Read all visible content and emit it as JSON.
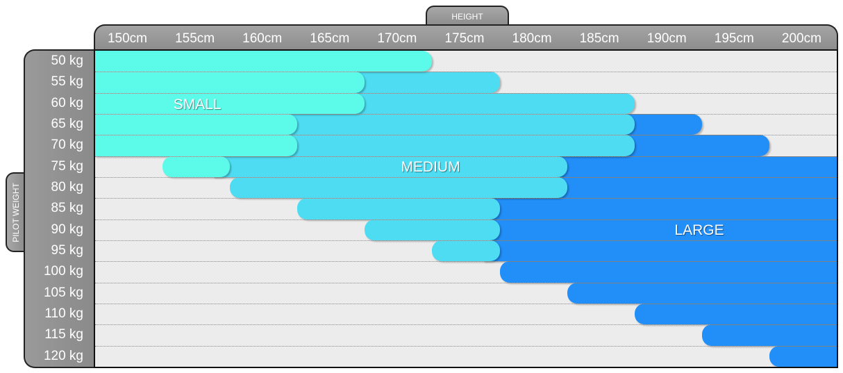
{
  "chart_data": {
    "type": "table",
    "x_axis_label": "HEIGHT",
    "y_axis_label": "PILOT WEIGHT",
    "x_ticks": [
      "150cm",
      "155cm",
      "160cm",
      "165cm",
      "170cm",
      "175cm",
      "180cm",
      "185cm",
      "190cm",
      "195cm",
      "200cm"
    ],
    "y_ticks": [
      "50 kg",
      "55 kg",
      "60 kg",
      "65 kg",
      "70 kg",
      "75 kg",
      "80 kg",
      "85 kg",
      "90 kg",
      "95 kg",
      "100 kg",
      "105 kg",
      "110 kg",
      "115 kg",
      "120 kg"
    ],
    "series": [
      {
        "name": "SMALL",
        "color": "#5cfbe9",
        "ranges": {
          "50 kg": [
            "150cm",
            "170cm"
          ],
          "55 kg": [
            "150cm",
            "165cm"
          ],
          "60 kg": [
            "150cm",
            "165cm"
          ],
          "65 kg": [
            "150cm",
            "160cm"
          ],
          "70 kg": [
            "150cm",
            "160cm"
          ],
          "75 kg": [
            "155cm",
            "155cm"
          ]
        }
      },
      {
        "name": "MEDIUM",
        "color": "#4ddcf2",
        "ranges": {
          "55 kg": [
            "170cm",
            "175cm"
          ],
          "60 kg": [
            "170cm",
            "185cm"
          ],
          "65 kg": [
            "165cm",
            "185cm"
          ],
          "70 kg": [
            "165cm",
            "185cm"
          ],
          "75 kg": [
            "160cm",
            "180cm"
          ],
          "80 kg": [
            "160cm",
            "180cm"
          ],
          "85 kg": [
            "165cm",
            "175cm"
          ],
          "90 kg": [
            "170cm",
            "175cm"
          ],
          "95 kg": [
            "175cm",
            "175cm"
          ]
        }
      },
      {
        "name": "LARGE",
        "color": "#228ef8",
        "ranges": {
          "65 kg": [
            "190cm",
            "190cm"
          ],
          "70 kg": [
            "190cm",
            "195cm"
          ],
          "75 kg": [
            "185cm",
            "200cm"
          ],
          "80 kg": [
            "185cm",
            "200cm"
          ],
          "85 kg": [
            "180cm",
            "200cm"
          ],
          "90 kg": [
            "180cm",
            "200cm"
          ],
          "95 kg": [
            "180cm",
            "200cm"
          ],
          "100 kg": [
            "180cm",
            "200cm"
          ],
          "105 kg": [
            "185cm",
            "200cm"
          ],
          "110 kg": [
            "190cm",
            "200cm"
          ],
          "115 kg": [
            "195cm",
            "200cm"
          ],
          "120 kg": [
            "200cm",
            "200cm"
          ]
        }
      }
    ],
    "background_color": "#ececec",
    "grid": true
  }
}
